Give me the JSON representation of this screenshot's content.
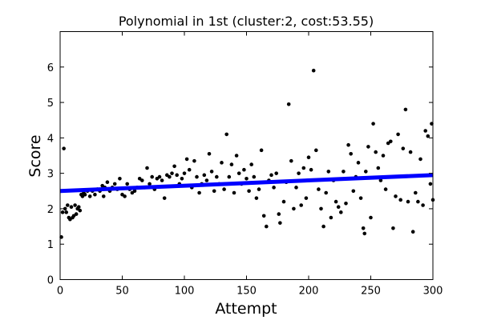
{
  "chart_data": {
    "type": "scatter",
    "title": "Polynomial in 1st (cluster:2, cost:53.55)",
    "xlabel": "Attempt",
    "ylabel": "Score",
    "xlim": [
      0,
      300
    ],
    "ylim": [
      0,
      7
    ],
    "xticks": [
      "0",
      "50",
      "100",
      "150",
      "200",
      "250",
      "300"
    ],
    "yticks": [
      "0",
      "1",
      "2",
      "3",
      "4",
      "5",
      "6"
    ],
    "grid": false,
    "colors": {
      "points": "#000000",
      "fit_line": "#0000ff"
    },
    "series": [
      {
        "kind": "points",
        "points": [
          [
            1,
            1.2
          ],
          [
            2,
            1.9
          ],
          [
            3,
            3.7
          ],
          [
            4,
            2.0
          ],
          [
            5,
            1.9
          ],
          [
            6,
            2.1
          ],
          [
            7,
            1.75
          ],
          [
            8,
            1.7
          ],
          [
            9,
            2.05
          ],
          [
            10,
            1.75
          ],
          [
            11,
            1.8
          ],
          [
            12,
            2.1
          ],
          [
            13,
            1.85
          ],
          [
            14,
            2.0
          ],
          [
            15,
            2.05
          ],
          [
            16,
            1.95
          ],
          [
            17,
            2.4
          ],
          [
            18,
            2.35
          ],
          [
            19,
            2.45
          ],
          [
            20,
            2.4
          ],
          [
            22,
            2.5
          ],
          [
            24,
            2.35
          ],
          [
            26,
            2.5
          ],
          [
            28,
            2.4
          ],
          [
            30,
            2.55
          ],
          [
            32,
            2.5
          ],
          [
            34,
            2.65
          ],
          [
            35,
            2.35
          ],
          [
            36,
            2.6
          ],
          [
            38,
            2.75
          ],
          [
            40,
            2.5
          ],
          [
            42,
            2.6
          ],
          [
            44,
            2.7
          ],
          [
            46,
            2.55
          ],
          [
            48,
            2.85
          ],
          [
            50,
            2.4
          ],
          [
            52,
            2.35
          ],
          [
            54,
            2.7
          ],
          [
            56,
            2.55
          ],
          [
            58,
            2.45
          ],
          [
            60,
            2.5
          ],
          [
            62,
            2.6
          ],
          [
            64,
            2.85
          ],
          [
            66,
            2.8
          ],
          [
            68,
            2.6
          ],
          [
            70,
            3.15
          ],
          [
            72,
            2.7
          ],
          [
            74,
            2.9
          ],
          [
            76,
            2.55
          ],
          [
            78,
            2.85
          ],
          [
            80,
            2.9
          ],
          [
            82,
            2.8
          ],
          [
            84,
            2.3
          ],
          [
            86,
            2.95
          ],
          [
            88,
            2.9
          ],
          [
            90,
            3.0
          ],
          [
            92,
            3.2
          ],
          [
            94,
            2.95
          ],
          [
            96,
            2.7
          ],
          [
            98,
            2.85
          ],
          [
            100,
            3.0
          ],
          [
            102,
            3.4
          ],
          [
            104,
            3.1
          ],
          [
            106,
            2.6
          ],
          [
            108,
            3.35
          ],
          [
            110,
            2.9
          ],
          [
            112,
            2.45
          ],
          [
            114,
            2.7
          ],
          [
            116,
            2.95
          ],
          [
            118,
            2.8
          ],
          [
            120,
            3.55
          ],
          [
            122,
            3.05
          ],
          [
            124,
            2.5
          ],
          [
            126,
            2.9
          ],
          [
            128,
            2.7
          ],
          [
            130,
            3.3
          ],
          [
            132,
            2.55
          ],
          [
            134,
            4.1
          ],
          [
            136,
            2.9
          ],
          [
            138,
            3.25
          ],
          [
            140,
            2.45
          ],
          [
            142,
            3.5
          ],
          [
            144,
            3.0
          ],
          [
            146,
            2.7
          ],
          [
            148,
            3.1
          ],
          [
            150,
            2.85
          ],
          [
            152,
            2.5
          ],
          [
            154,
            3.25
          ],
          [
            156,
            2.9
          ],
          [
            158,
            2.3
          ],
          [
            160,
            2.55
          ],
          [
            162,
            3.65
          ],
          [
            164,
            1.8
          ],
          [
            166,
            1.5
          ],
          [
            168,
            2.8
          ],
          [
            170,
            2.95
          ],
          [
            172,
            2.6
          ],
          [
            174,
            3.0
          ],
          [
            176,
            1.85
          ],
          [
            177,
            1.6
          ],
          [
            180,
            2.2
          ],
          [
            182,
            2.75
          ],
          [
            184,
            4.95
          ],
          [
            186,
            3.35
          ],
          [
            188,
            2.0
          ],
          [
            190,
            2.6
          ],
          [
            192,
            3.0
          ],
          [
            194,
            2.1
          ],
          [
            196,
            3.15
          ],
          [
            198,
            2.3
          ],
          [
            200,
            3.45
          ],
          [
            202,
            3.1
          ],
          [
            204,
            5.9
          ],
          [
            206,
            3.65
          ],
          [
            208,
            2.55
          ],
          [
            210,
            2.0
          ],
          [
            212,
            1.5
          ],
          [
            214,
            2.45
          ],
          [
            216,
            3.05
          ],
          [
            218,
            1.75
          ],
          [
            220,
            2.8
          ],
          [
            222,
            2.2
          ],
          [
            224,
            2.05
          ],
          [
            226,
            1.9
          ],
          [
            228,
            3.05
          ],
          [
            230,
            2.15
          ],
          [
            232,
            3.8
          ],
          [
            234,
            3.55
          ],
          [
            236,
            2.5
          ],
          [
            238,
            2.9
          ],
          [
            240,
            3.3
          ],
          [
            242,
            2.3
          ],
          [
            244,
            1.45
          ],
          [
            245,
            1.3
          ],
          [
            246,
            3.05
          ],
          [
            248,
            3.75
          ],
          [
            250,
            1.75
          ],
          [
            252,
            4.4
          ],
          [
            254,
            3.6
          ],
          [
            256,
            3.15
          ],
          [
            258,
            2.8
          ],
          [
            260,
            3.5
          ],
          [
            262,
            2.55
          ],
          [
            264,
            3.85
          ],
          [
            266,
            3.9
          ],
          [
            268,
            1.45
          ],
          [
            270,
            2.35
          ],
          [
            272,
            4.1
          ],
          [
            274,
            2.25
          ],
          [
            276,
            3.7
          ],
          [
            278,
            4.8
          ],
          [
            280,
            2.2
          ],
          [
            282,
            3.6
          ],
          [
            284,
            1.35
          ],
          [
            286,
            2.45
          ],
          [
            288,
            2.2
          ],
          [
            290,
            3.4
          ],
          [
            292,
            2.1
          ],
          [
            294,
            4.2
          ],
          [
            296,
            4.05
          ],
          [
            298,
            2.7
          ],
          [
            299,
            4.4
          ],
          [
            300,
            2.25
          ]
        ]
      },
      {
        "kind": "line",
        "x": [
          0,
          300
        ],
        "y": [
          2.5,
          2.95
        ]
      }
    ]
  }
}
